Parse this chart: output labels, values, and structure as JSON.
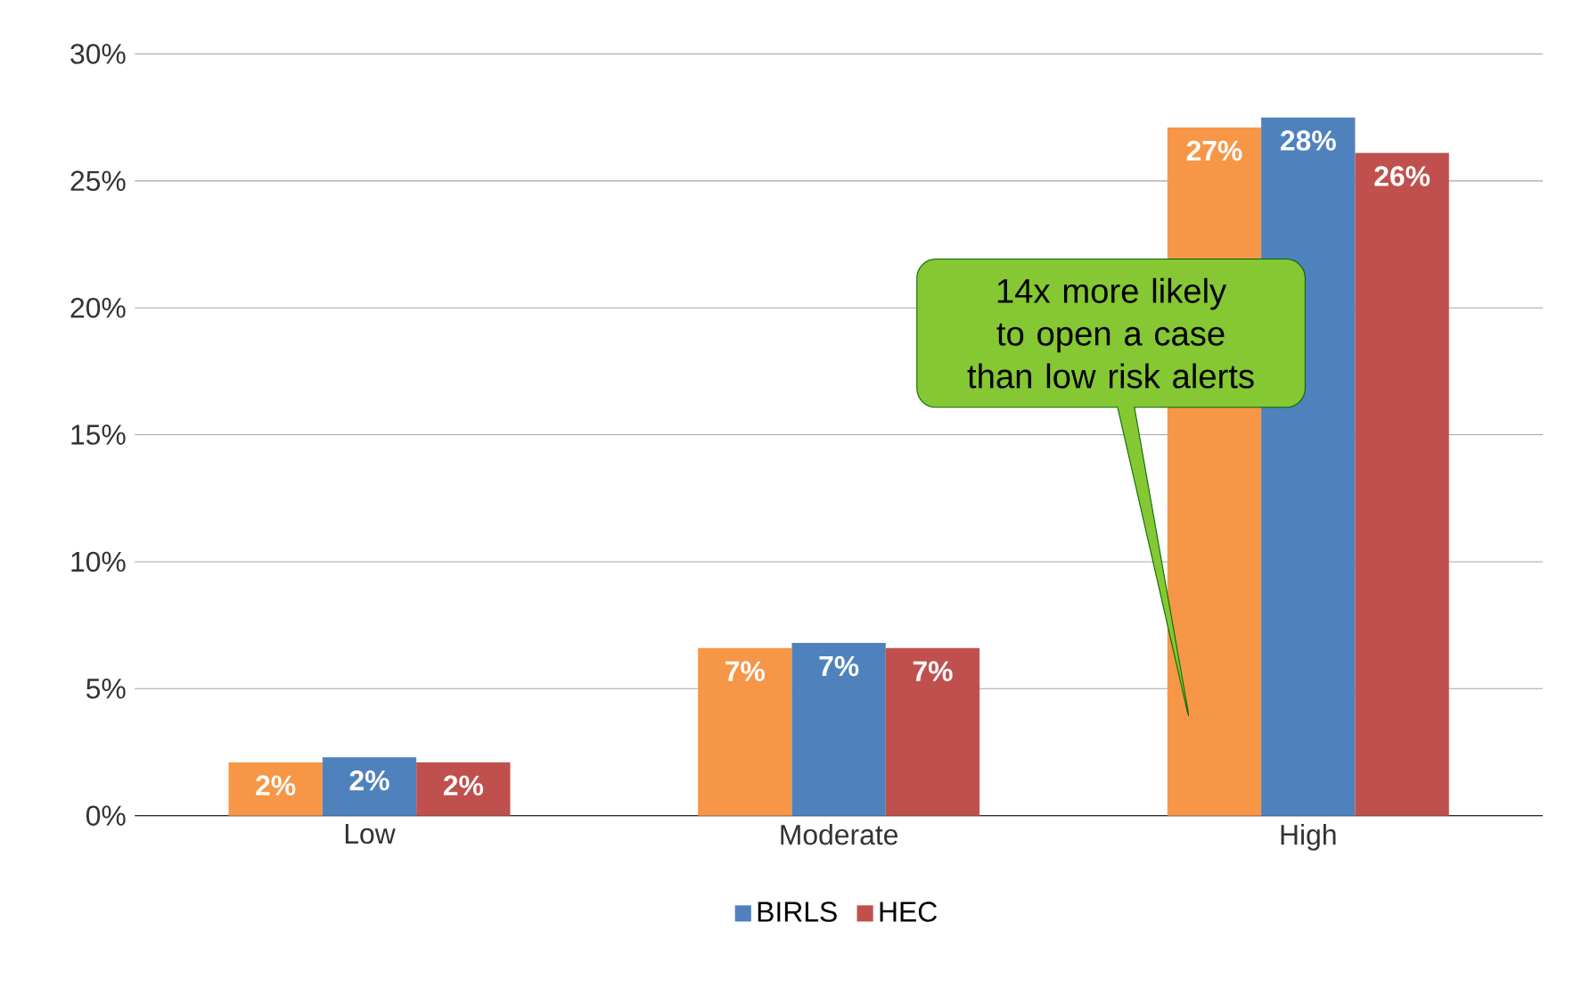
{
  "chart_data": {
    "type": "bar",
    "categories": [
      "Low",
      "Moderate",
      "High"
    ],
    "series": [
      {
        "color": "#f79646",
        "values": [
          2.1,
          6.6,
          27.1
        ],
        "value_labels": [
          "2%",
          "7%",
          "27%"
        ]
      },
      {
        "name": "BIRLS",
        "color": "#4f81bd",
        "values": [
          2.3,
          6.8,
          27.5
        ],
        "value_labels": [
          "2%",
          "7%",
          "28%"
        ]
      },
      {
        "name": "HEC",
        "color": "#c0504d",
        "values": [
          2.1,
          6.6,
          26.1
        ],
        "value_labels": [
          "2%",
          "7%",
          "26%"
        ]
      }
    ],
    "ylim": [
      0,
      30
    ],
    "yticks": [
      {
        "value": 0,
        "label": "0%"
      },
      {
        "value": 5,
        "label": "5%"
      },
      {
        "value": 10,
        "label": "10%"
      },
      {
        "value": 15,
        "label": "15%"
      },
      {
        "value": 20,
        "label": "20%"
      },
      {
        "value": 25,
        "label": "25%"
      },
      {
        "value": 30,
        "label": "30%"
      }
    ],
    "grid": "y",
    "legend": "bottom",
    "annotations": [
      "14x more likely to open a case than low risk alerts"
    ]
  }
}
